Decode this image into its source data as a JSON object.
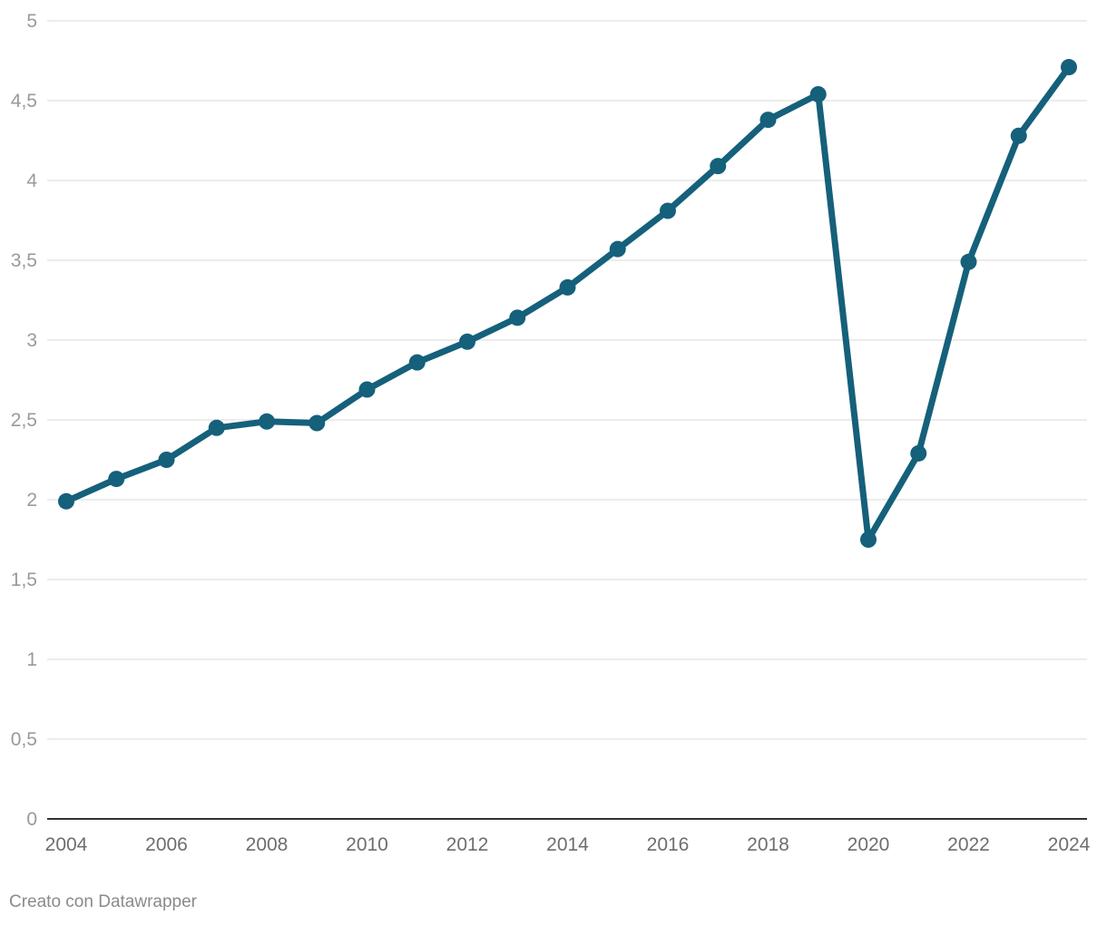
{
  "chart_data": {
    "type": "line",
    "title": "",
    "xlabel": "",
    "ylabel": "",
    "x": [
      2004,
      2005,
      2006,
      2007,
      2008,
      2009,
      2010,
      2011,
      2012,
      2013,
      2014,
      2015,
      2016,
      2017,
      2018,
      2019,
      2020,
      2021,
      2022,
      2023,
      2024
    ],
    "series": [
      {
        "values": [
          1.99,
          2.13,
          2.25,
          2.45,
          2.49,
          2.48,
          2.69,
          2.86,
          2.99,
          3.14,
          3.33,
          3.57,
          3.81,
          4.09,
          4.38,
          4.54,
          1.75,
          2.29,
          3.49,
          4.28,
          4.71
        ],
        "color": "#15607a"
      }
    ],
    "ylim": [
      0,
      5
    ],
    "yticks": [
      0,
      0.5,
      1,
      1.5,
      2,
      2.5,
      3,
      3.5,
      4,
      4.5,
      5
    ],
    "ytick_labels": [
      "0",
      "0,5",
      "1",
      "1,5",
      "2",
      "2,5",
      "3",
      "3,5",
      "4",
      "4,5",
      "5"
    ],
    "xlim": [
      2004,
      2024
    ],
    "xticks": [
      2004,
      2006,
      2008,
      2010,
      2012,
      2014,
      2016,
      2018,
      2020,
      2022,
      2024
    ],
    "xtick_labels": [
      "2004",
      "2006",
      "2008",
      "2010",
      "2012",
      "2014",
      "2016",
      "2018",
      "2020",
      "2022",
      "2024"
    ],
    "grid": true,
    "legend": "none",
    "colors": {
      "gridline": "#e0e0e0",
      "baseline": "#333333"
    }
  },
  "footer": {
    "credit": "Creato con Datawrapper"
  }
}
